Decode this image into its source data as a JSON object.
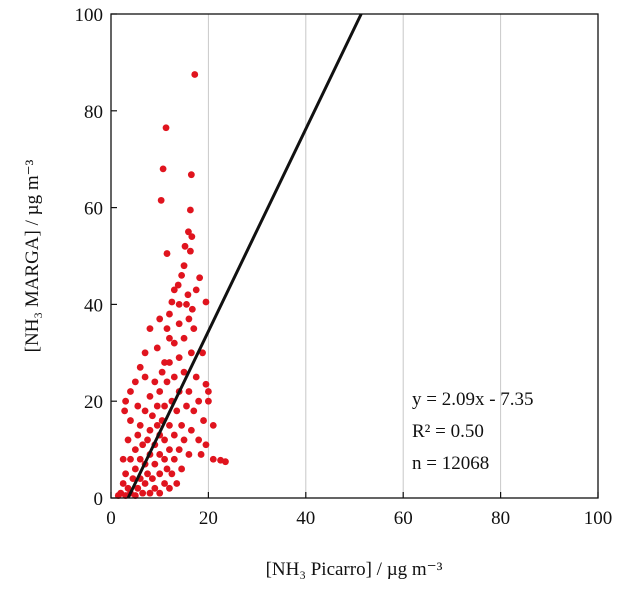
{
  "chart_data": {
    "type": "scatter",
    "xlabel": "[NH₃ Picarro] / µg m⁻³",
    "ylabel": "[NH₃ MARGA] / µg m⁻³",
    "xlim": [
      0,
      100
    ],
    "ylim": [
      0,
      100
    ],
    "xticks": [
      0,
      20,
      40,
      60,
      80,
      100
    ],
    "yticks": [
      0,
      20,
      40,
      60,
      80,
      100
    ],
    "series": [
      {
        "color": "#e0141e",
        "x": [
          17.2,
          11.3,
          10.7,
          16.5,
          10.3,
          16.3,
          15.9,
          16.6,
          15.2,
          16.3,
          11.5,
          15,
          18.2,
          17.5,
          19.5,
          15.8,
          13.8,
          14.5,
          16.7,
          12.5,
          8,
          10,
          23.5,
          22.5,
          21,
          20,
          19.5,
          18.5,
          2.8,
          4,
          3,
          5,
          6,
          9.5,
          12,
          14,
          17,
          18.8,
          11,
          7,
          2,
          2.5,
          3,
          3,
          3.5,
          4,
          4,
          4.5,
          5,
          5,
          5,
          5.5,
          5.5,
          6,
          6,
          6,
          6.5,
          6.5,
          7,
          7,
          7,
          7.5,
          7.5,
          8,
          8,
          8,
          8,
          8.5,
          8.5,
          9,
          9,
          9,
          9,
          9.5,
          9.5,
          10,
          10,
          10,
          10,
          10,
          10.5,
          10.5,
          11,
          11,
          11,
          11,
          11.5,
          11.5,
          12,
          12,
          12,
          12,
          12.5,
          12.5,
          13,
          13,
          13,
          13,
          13.5,
          13.5,
          14,
          14,
          14,
          14.5,
          14.5,
          15,
          15,
          15,
          15.5,
          16,
          16,
          16.5,
          16.5,
          17,
          17.5,
          18,
          18,
          19,
          19.5,
          20,
          21,
          4,
          3.5,
          5.5,
          7,
          1.5,
          2.5,
          16,
          14,
          13,
          12,
          11.5,
          15.5
        ],
        "y": [
          87.5,
          76.5,
          68,
          66.8,
          61.5,
          59.5,
          55,
          54,
          52,
          51,
          50.5,
          48,
          45.5,
          43,
          40.5,
          42,
          44,
          46,
          39,
          40.5,
          35,
          37,
          7.5,
          7.8,
          8,
          22,
          23.5,
          9,
          18,
          22,
          20,
          24,
          27,
          31,
          33,
          36,
          35,
          30,
          28,
          30,
          1,
          3,
          0.5,
          5,
          2,
          8,
          1,
          4,
          0.5,
          10,
          6,
          2,
          13,
          4,
          8,
          15,
          1,
          11,
          3,
          7,
          18,
          12,
          5,
          1,
          9,
          14,
          21,
          4,
          17,
          2,
          7,
          11,
          24,
          15,
          19,
          1,
          5,
          9,
          13,
          22,
          16,
          26,
          3,
          8,
          12,
          19,
          24,
          6,
          2,
          10,
          15,
          28,
          20,
          5,
          8,
          13,
          25,
          32,
          18,
          3,
          10,
          22,
          29,
          15,
          6,
          12,
          26,
          33,
          19,
          9,
          22,
          30,
          14,
          18,
          25,
          12,
          20,
          16,
          11,
          20,
          15,
          16,
          12,
          19,
          25,
          0.5,
          8,
          37,
          40,
          43,
          38,
          35,
          40
        ]
      }
    ],
    "fit": {
      "color": "#111111",
      "x": [
        3.52,
        51.37
      ],
      "y": [
        0,
        100
      ]
    },
    "annotations": [
      "y = 2.09x - 7.35",
      "R² = 0.50",
      "n = 12068"
    ]
  }
}
